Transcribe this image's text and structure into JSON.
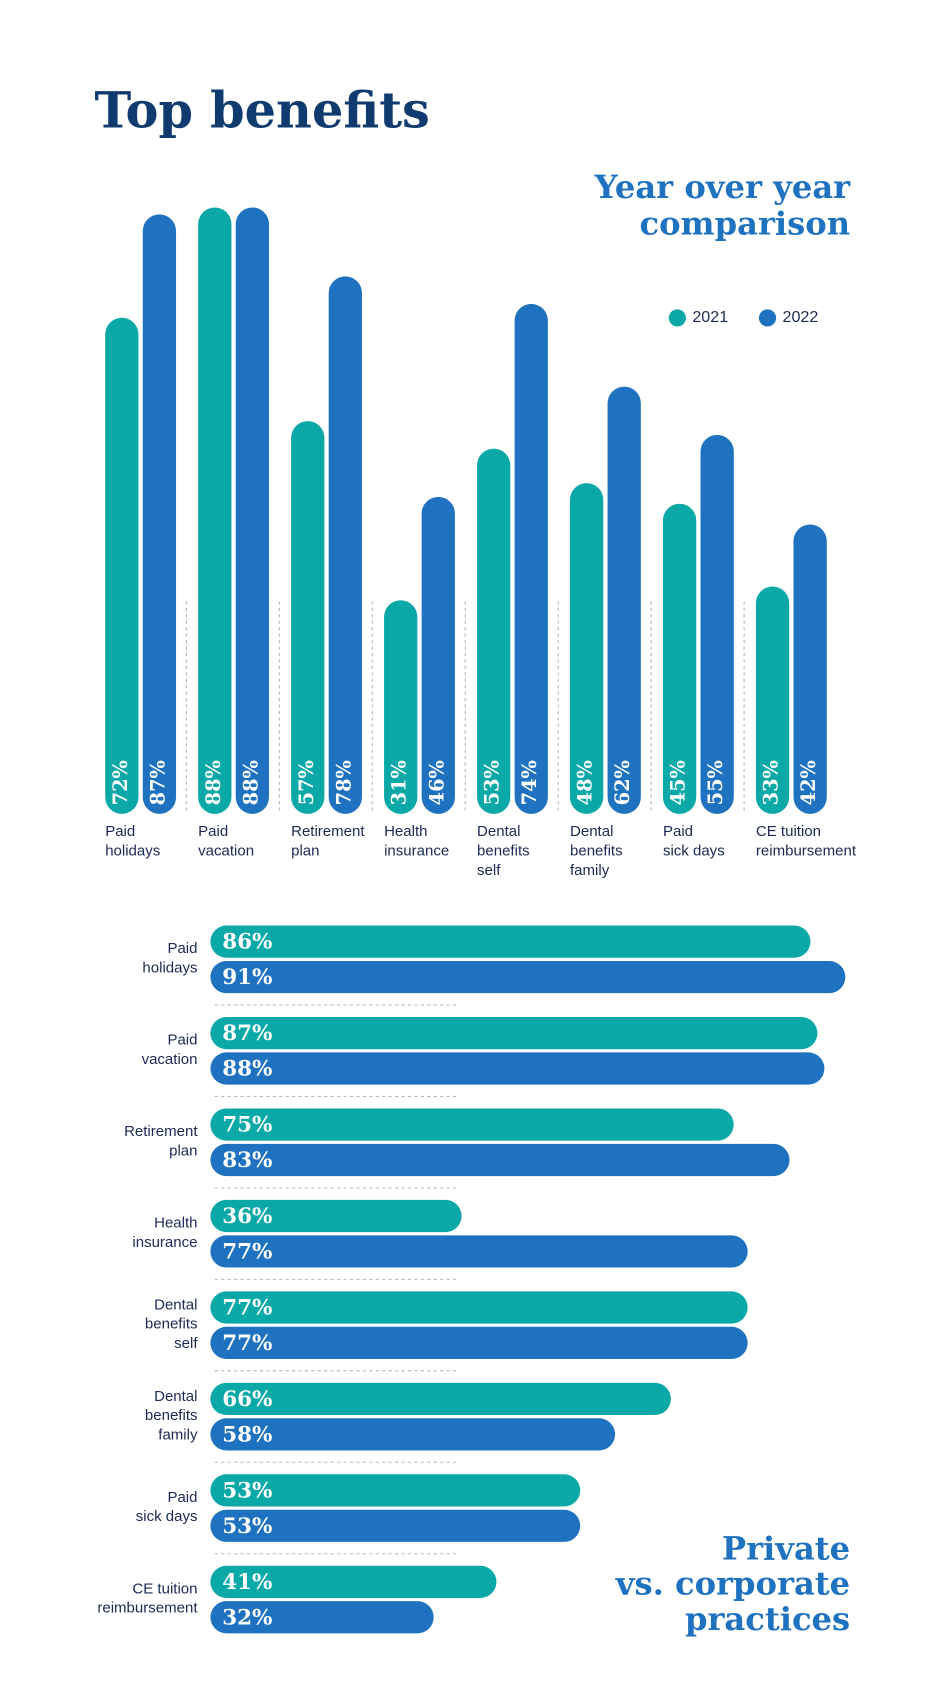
{
  "title": "Top benefits",
  "chart_data": [
    {
      "type": "column",
      "subtitle": "Year over year\ncomparison",
      "categories": [
        "Paid\nholidays",
        "Paid\nvacation",
        "Retirement\nplan",
        "Health\ninsurance",
        "Dental\nbenefits\nself",
        "Dental\nbenefits\nfamily",
        "Paid\nsick days",
        "CE tuition\nreimbursement"
      ],
      "series": [
        {
          "name": "2021",
          "color": "#0aa8a7",
          "values": [
            72,
            88,
            57,
            31,
            53,
            48,
            45,
            33
          ],
          "value_labels": [
            "72%",
            "88%",
            "57%",
            "31%",
            "53%",
            "48%",
            "45%",
            "33%"
          ]
        },
        {
          "name": "2022",
          "color": "#1f72bf",
          "values": [
            87,
            88,
            78,
            46,
            74,
            62,
            55,
            42
          ],
          "value_labels": [
            "87%",
            "88%",
            "78%",
            "46%",
            "74%",
            "62%",
            "55%",
            "42%"
          ]
        }
      ]
    },
    {
      "type": "hbar",
      "subtitle": "Private\nvs. corporate\npractices",
      "categories": [
        "Paid\nholidays",
        "Paid\nvacation",
        "Retirement\nplan",
        "Health\ninsurance",
        "Dental\nbenefits\nself",
        "Dental\nbenefits\nfamily",
        "Paid\nsick days",
        "CE tuition\nreimbursement"
      ],
      "series": [
        {
          "color": "#0aa8a7",
          "values": [
            86,
            87,
            75,
            36,
            77,
            66,
            53,
            41
          ],
          "value_labels": [
            "86%",
            "87%",
            "75%",
            "36%",
            "77%",
            "66%",
            "53%",
            "41%"
          ]
        },
        {
          "color": "#1f72bf",
          "values": [
            91,
            88,
            83,
            77,
            77,
            58,
            53,
            32
          ],
          "value_labels": [
            "91%",
            "88%",
            "83%",
            "77%",
            "77%",
            "58%",
            "53%",
            "32%"
          ]
        }
      ]
    }
  ]
}
